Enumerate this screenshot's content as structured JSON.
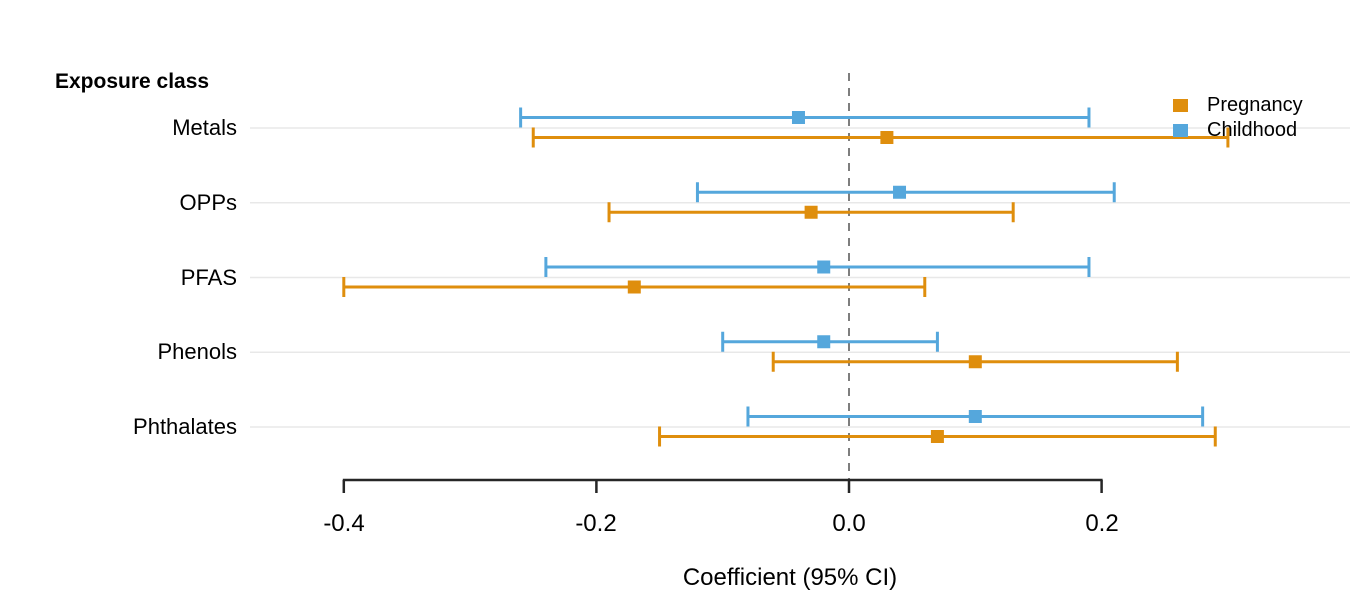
{
  "header": {
    "label": "Exposure class"
  },
  "legend": {
    "items": [
      {
        "label": "Pregnancy",
        "color": "#DF8E0D"
      },
      {
        "label": "Childhood",
        "color": "#55A7DC"
      }
    ]
  },
  "axis": {
    "title": "Coefficient (95% CI)",
    "ticks": [
      "-0.4",
      "-0.2",
      "0.0",
      "0.2"
    ],
    "tick_values": [
      -0.4,
      -0.2,
      0.0,
      0.2
    ]
  },
  "colors": {
    "background": "#FFFFFF",
    "grid": "#E8E8E8",
    "axis_line": "#262626",
    "reference_line": "#7E7E7E",
    "pregnancy": "#DF8E0D",
    "childhood": "#55A7DC"
  },
  "chart_data": {
    "type": "scatter",
    "subtype": "forest-errorbar",
    "orientation": "horizontal",
    "title": "",
    "xlabel": "Coefficient (95% CI)",
    "ylabel": "Exposure class",
    "categories": [
      "Metals",
      "OPPs",
      "PFAS",
      "Phenols",
      "Phthalates"
    ],
    "xlim": [
      -0.47,
      0.4
    ],
    "x_ticks": [
      -0.4,
      -0.2,
      0.0,
      0.2
    ],
    "reference_line_x": 0.0,
    "grid": "horizontal-only",
    "legend_position": "top-right",
    "series": [
      {
        "name": "Pregnancy",
        "color": "#DF8E0D",
        "row_offset": "below",
        "points": [
          {
            "category": "Metals",
            "estimate": 0.03,
            "ci_low": -0.25,
            "ci_high": 0.3
          },
          {
            "category": "OPPs",
            "estimate": -0.03,
            "ci_low": -0.19,
            "ci_high": 0.13
          },
          {
            "category": "PFAS",
            "estimate": -0.17,
            "ci_low": -0.4,
            "ci_high": 0.06
          },
          {
            "category": "Phenols",
            "estimate": 0.1,
            "ci_low": -0.06,
            "ci_high": 0.26
          },
          {
            "category": "Phthalates",
            "estimate": 0.07,
            "ci_low": -0.15,
            "ci_high": 0.29
          }
        ]
      },
      {
        "name": "Childhood",
        "color": "#55A7DC",
        "row_offset": "above",
        "points": [
          {
            "category": "Metals",
            "estimate": -0.04,
            "ci_low": -0.26,
            "ci_high": 0.19
          },
          {
            "category": "OPPs",
            "estimate": 0.04,
            "ci_low": -0.12,
            "ci_high": 0.21
          },
          {
            "category": "PFAS",
            "estimate": -0.02,
            "ci_low": -0.24,
            "ci_high": 0.19
          },
          {
            "category": "Phenols",
            "estimate": -0.02,
            "ci_low": -0.1,
            "ci_high": 0.07
          },
          {
            "category": "Phthalates",
            "estimate": 0.1,
            "ci_low": -0.08,
            "ci_high": 0.28
          }
        ]
      }
    ]
  }
}
